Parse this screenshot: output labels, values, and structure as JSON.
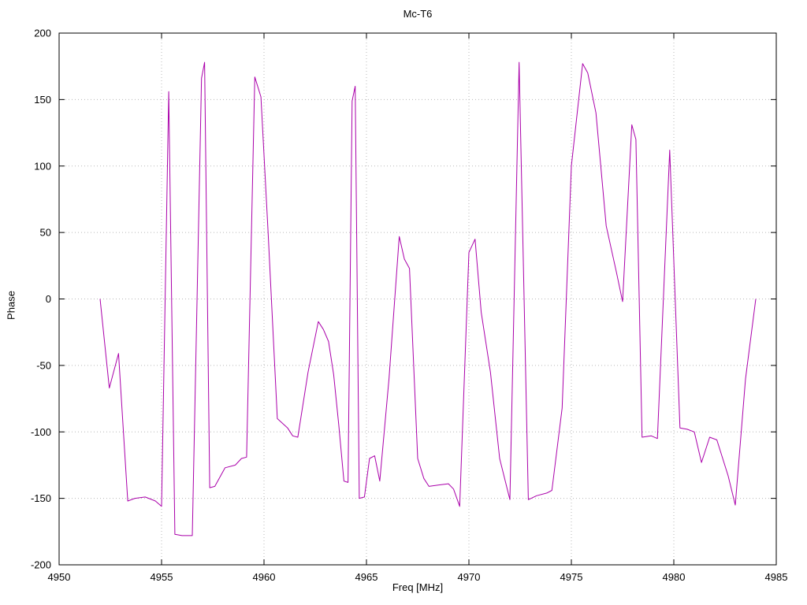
{
  "chart": {
    "title": "Mc-T6",
    "xlabel": "Freq [MHz]",
    "ylabel": "Phase"
  },
  "chart_data": {
    "type": "line",
    "title": "Mc-T6",
    "xlabel": "Freq [MHz]",
    "ylabel": "Phase",
    "xlim": [
      4950,
      4985
    ],
    "ylim": [
      -200,
      200
    ],
    "x_ticks": [
      4950,
      4955,
      4960,
      4965,
      4970,
      4975,
      4980,
      4985
    ],
    "y_ticks": [
      -200,
      -150,
      -100,
      -50,
      0,
      50,
      100,
      150,
      200
    ],
    "grid": true,
    "grid_color": "#b8b8b8",
    "border_color": "#000000",
    "line_color": "#aa00aa",
    "legend": "none",
    "series": [
      {
        "name": "Phase",
        "x": [
          4952.0,
          4952.45,
          4952.9,
          4953.35,
          4953.7,
          4954.2,
          4954.7,
          4955.0,
          4955.35,
          4955.65,
          4956.0,
          4956.5,
          4956.95,
          4957.1,
          4957.35,
          4957.6,
          4958.1,
          4958.6,
          4958.9,
          4959.15,
          4959.55,
          4959.85,
          4960.2,
          4960.65,
          4961.15,
          4961.4,
          4961.65,
          4962.15,
          4962.65,
          4962.9,
          4963.15,
          4963.4,
          4963.65,
          4963.9,
          4964.1,
          4964.3,
          4964.45,
          4964.65,
          4964.9,
          4965.15,
          4965.4,
          4965.65,
          4966.1,
          4966.6,
          4966.85,
          4967.1,
          4967.5,
          4967.8,
          4968.05,
          4968.5,
          4969.0,
          4969.25,
          4969.55,
          4970.0,
          4970.3,
          4970.6,
          4971.05,
          4971.5,
          4972.0,
          4972.45,
          4972.9,
          4973.3,
          4973.8,
          4974.05,
          4974.55,
          4975.0,
          4975.55,
          4975.8,
          4976.2,
          4976.7,
          4977.2,
          4977.5,
          4977.95,
          4978.15,
          4978.45,
          4978.9,
          4979.2,
          4979.8,
          4980.3,
          4980.65,
          4981.0,
          4981.35,
          4981.75,
          4982.1,
          4982.65,
          4983.0,
          4983.5,
          4984.0
        ],
        "y": [
          0,
          -67,
          -41,
          -152,
          -150,
          -149,
          -152,
          -156,
          156,
          -177,
          -178,
          -178,
          166,
          178,
          -142,
          -141,
          -127,
          -125,
          -120,
          -119,
          167,
          152,
          50,
          -90,
          -97,
          -103,
          -104,
          -55,
          -17,
          -23,
          -32,
          -57,
          -95,
          -137,
          -138,
          149,
          160,
          -150,
          -149,
          -120,
          -118,
          -137,
          -60,
          47,
          30,
          23,
          -120,
          -135,
          -141,
          -140,
          -139,
          -143,
          -156,
          35,
          45,
          -10,
          -55,
          -120,
          -151,
          178,
          -151,
          -148,
          -146,
          -144,
          -82,
          100,
          177,
          170,
          140,
          55,
          20,
          -2,
          131,
          120,
          -104,
          -103,
          -105,
          112,
          -97,
          -98,
          -100,
          -123,
          -104,
          -106,
          -133,
          -155,
          -60,
          0
        ]
      }
    ]
  }
}
